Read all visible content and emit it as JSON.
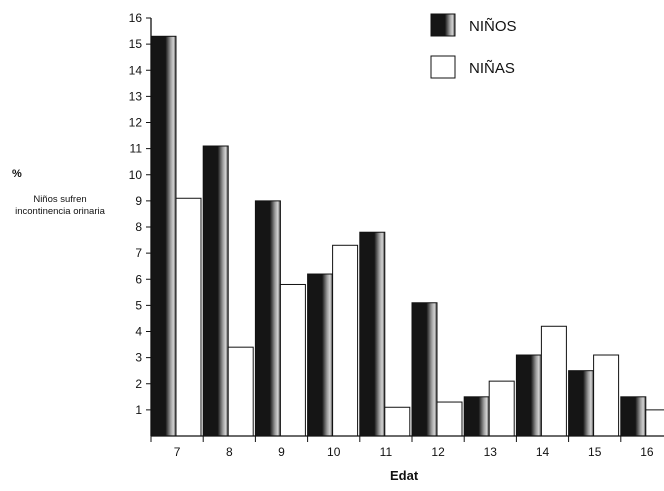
{
  "chart_data": {
    "type": "bar",
    "title": "",
    "xlabel": "Edat",
    "ylabel_unit": "%",
    "ylabel": "Niños sufren incontinencia orinaria",
    "categories": [
      "7",
      "8",
      "9",
      "10",
      "11",
      "12",
      "13",
      "14",
      "15",
      "16"
    ],
    "ylim": [
      0,
      16
    ],
    "yticks": [
      "1",
      "2",
      "3",
      "4",
      "5",
      "6",
      "7",
      "8",
      "9",
      "10",
      "11",
      "12",
      "13",
      "14",
      "15",
      "16"
    ],
    "series": [
      {
        "name": "NIÑOS",
        "values": [
          15.3,
          11.1,
          9.0,
          6.2,
          7.8,
          5.1,
          1.5,
          3.1,
          2.5,
          1.5
        ],
        "fill": "dark"
      },
      {
        "name": "NIÑAS",
        "values": [
          9.1,
          3.4,
          5.8,
          7.3,
          1.1,
          1.3,
          2.1,
          4.2,
          3.1,
          1.0
        ],
        "fill": "white"
      }
    ],
    "legend_position": "top-right",
    "grid": false
  },
  "colors": {
    "bar_dark": "#161616",
    "bar_shade": "#bdbdbd",
    "bar_light": "#ffffff",
    "axis": "#111111"
  }
}
